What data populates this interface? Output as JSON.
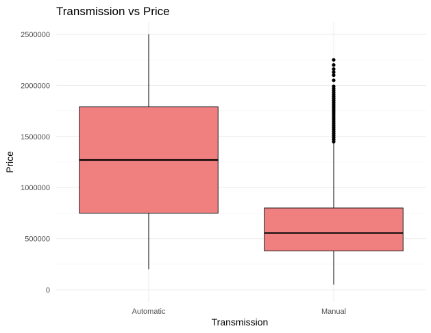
{
  "chart_data": {
    "type": "box",
    "title": "Transmission vs Price",
    "xlabel": "Transmission",
    "ylabel": "Price",
    "ylim": [
      0,
      2500000
    ],
    "yticks": [
      0,
      500000,
      1000000,
      1500000,
      2000000,
      2500000
    ],
    "ytick_labels": [
      "0",
      "500000",
      "1000000",
      "1500000",
      "2000000",
      "2500000"
    ],
    "categories": [
      "Automatic",
      "Manual"
    ],
    "grid": true,
    "fill_color": "#f08080",
    "boxes": [
      {
        "category": "Automatic",
        "min": 200000,
        "q1": 750000,
        "median": 1270000,
        "q3": 1790000,
        "max": 2500000,
        "outliers": []
      },
      {
        "category": "Manual",
        "min": 50000,
        "q1": 380000,
        "median": 555000,
        "q3": 800000,
        "max": 1440000,
        "outliers": [
          1450000,
          1470000,
          1490000,
          1510000,
          1530000,
          1550000,
          1570000,
          1590000,
          1610000,
          1630000,
          1650000,
          1670000,
          1690000,
          1710000,
          1730000,
          1750000,
          1770000,
          1790000,
          1810000,
          1830000,
          1850000,
          1870000,
          1890000,
          1910000,
          1930000,
          1950000,
          1970000,
          1990000,
          2050000,
          2100000,
          2130000,
          2160000,
          2200000,
          2250000
        ]
      }
    ]
  }
}
